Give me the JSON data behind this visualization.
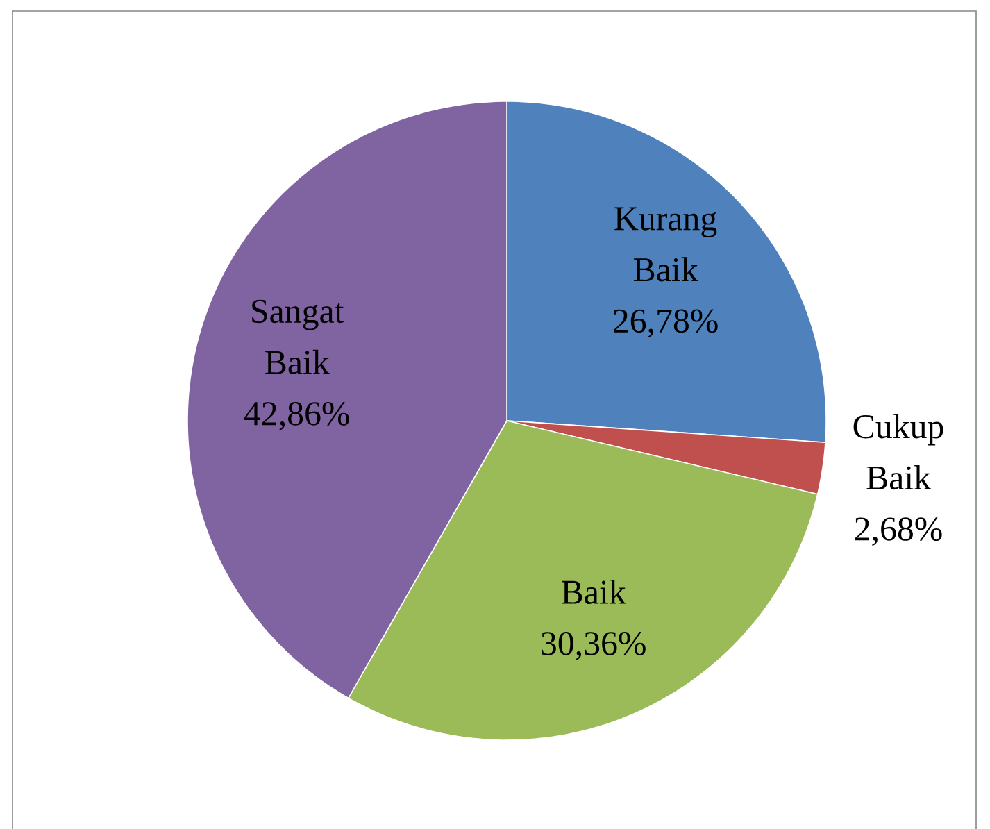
{
  "chart_data": {
    "type": "pie",
    "categories": [
      "Kurang Baik",
      "Cukup Baik",
      "Baik",
      "Sangat Baik"
    ],
    "values": [
      26.78,
      2.68,
      30.36,
      42.86
    ],
    "value_labels": [
      "26,78%",
      "2,68%",
      "30,36%",
      "42,86%"
    ],
    "colors": [
      "#4f81bd",
      "#c0504d",
      "#9bbb59",
      "#8064a2"
    ]
  }
}
